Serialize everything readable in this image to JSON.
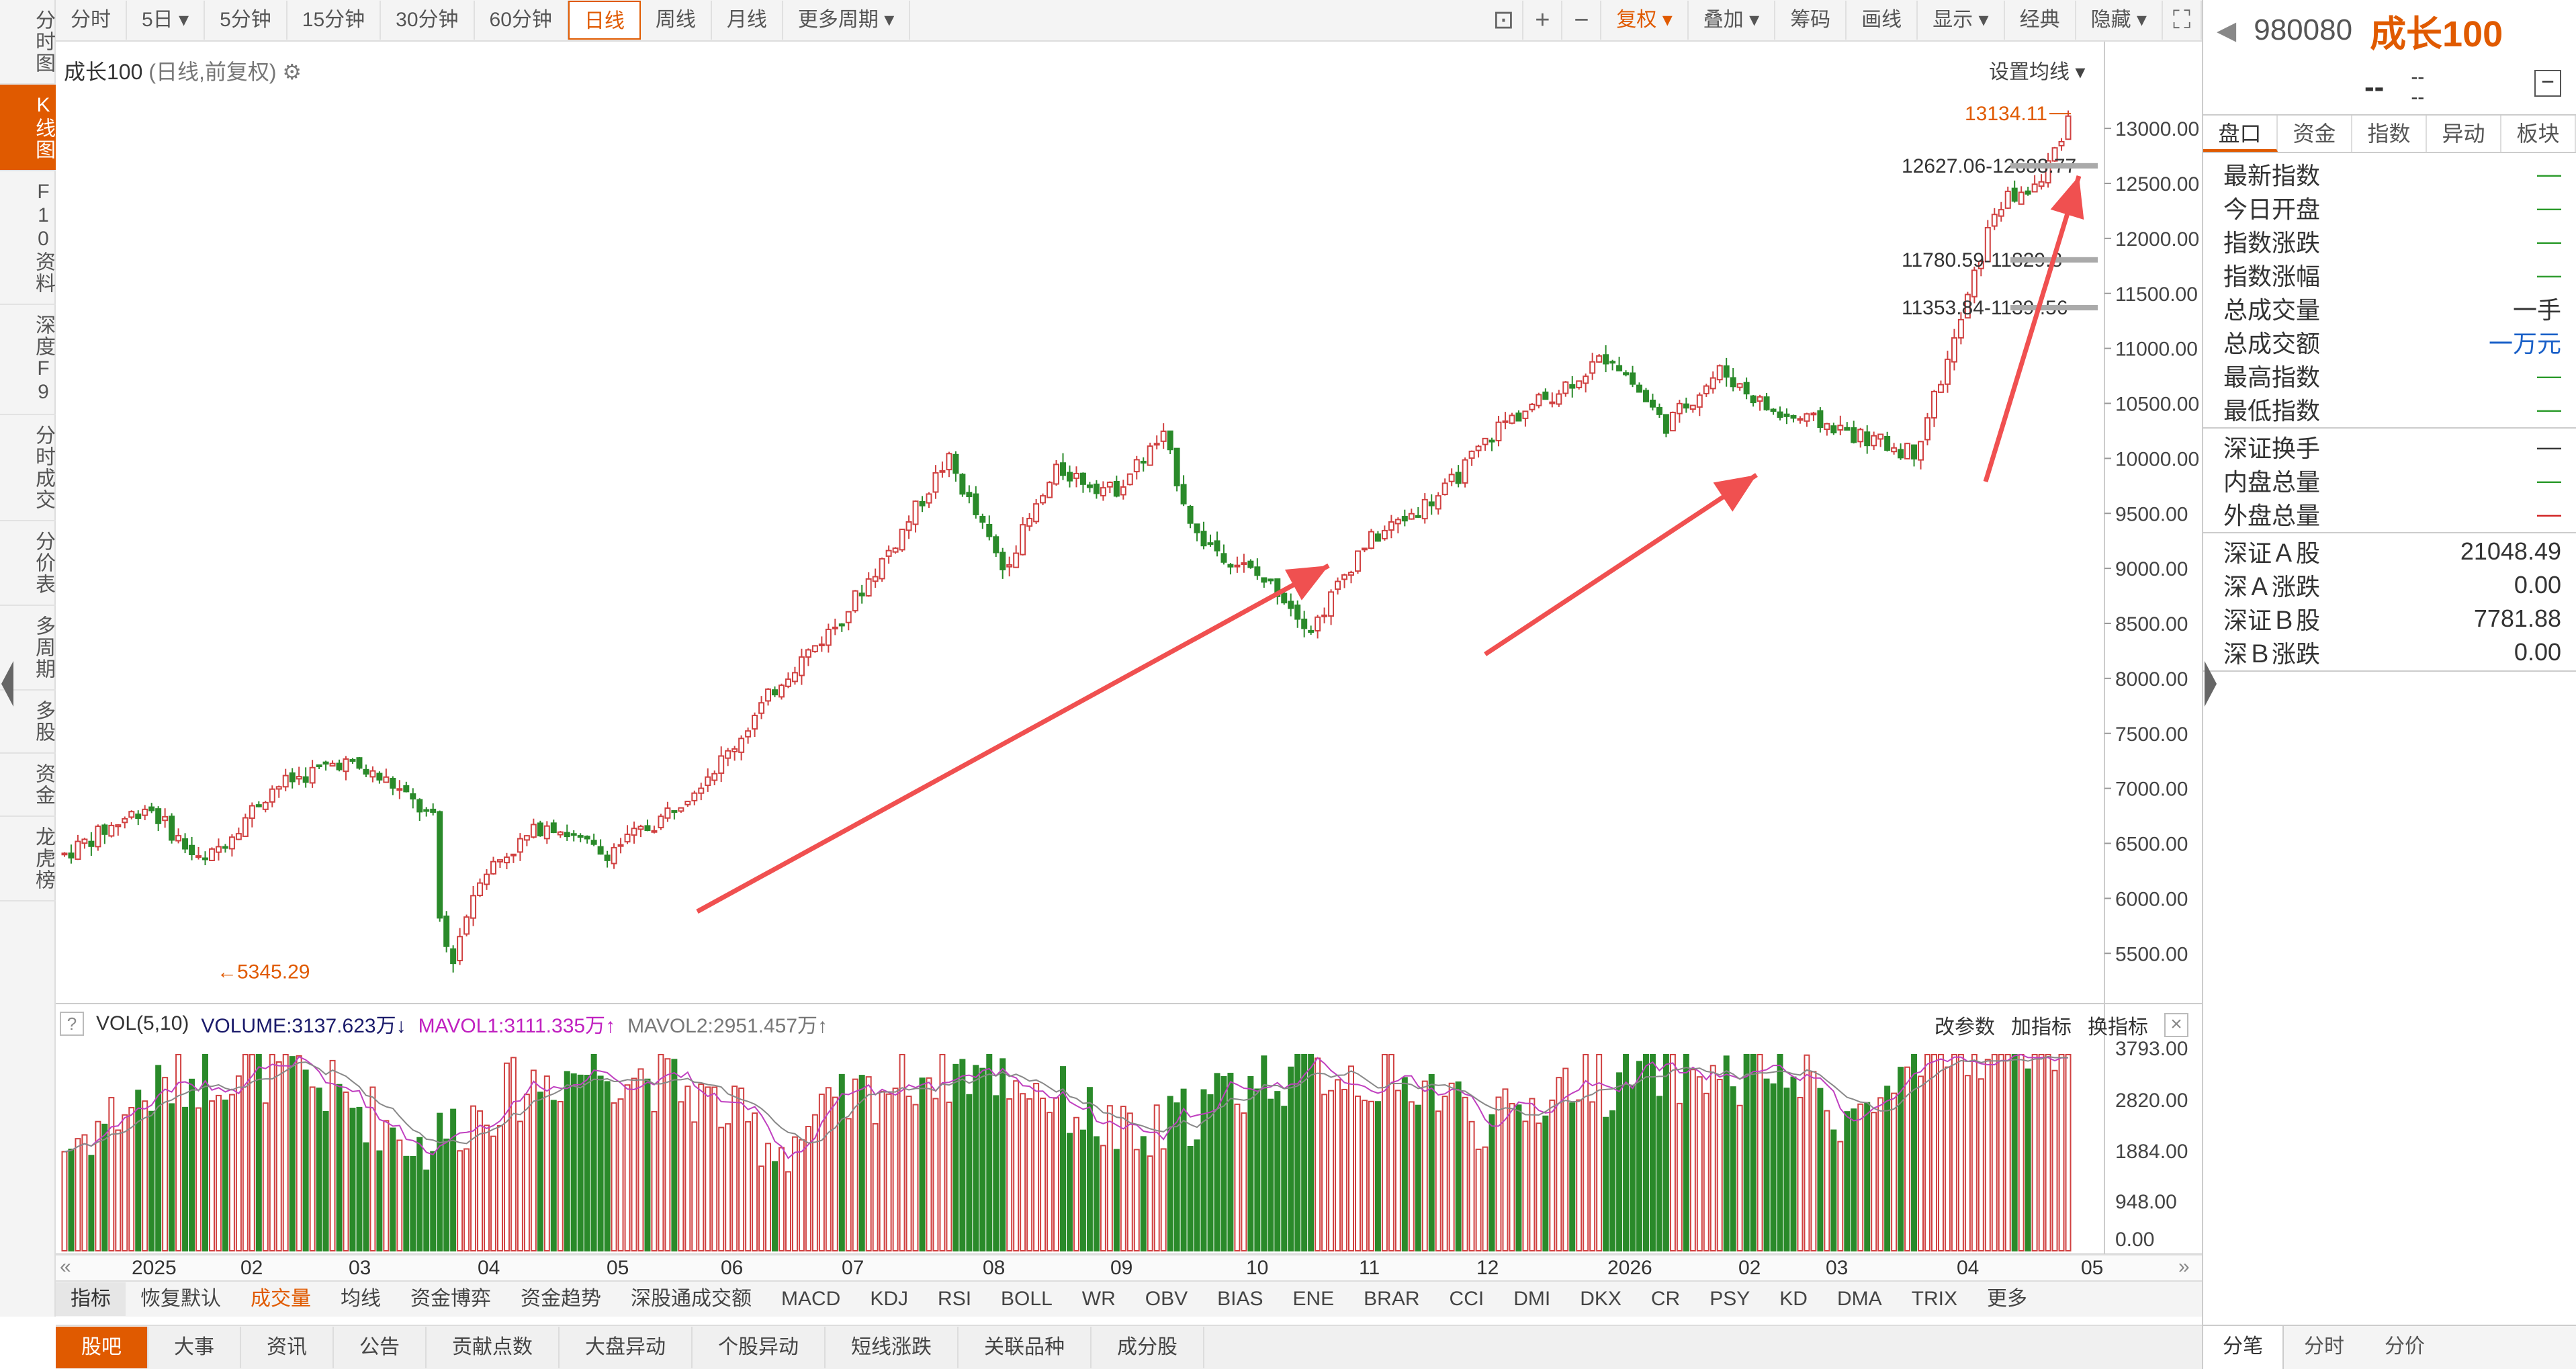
{
  "left_nav": [
    {
      "label": "分时图",
      "active": false
    },
    {
      "label": "K线图",
      "active": true
    },
    {
      "label": "F10资料",
      "active": false
    },
    {
      "label": "深度F9",
      "active": false
    },
    {
      "label": "分时成交",
      "active": false
    },
    {
      "label": "分价表",
      "active": false
    },
    {
      "label": "多周期",
      "active": false
    },
    {
      "label": "多股",
      "active": false
    },
    {
      "label": "资金",
      "active": false
    },
    {
      "label": "龙虎榜",
      "active": false
    }
  ],
  "toolbar": {
    "periods": [
      {
        "label": "分时",
        "active": false
      },
      {
        "label": "5日 ▾",
        "active": false
      },
      {
        "label": "5分钟",
        "active": false
      },
      {
        "label": "15分钟",
        "active": false
      },
      {
        "label": "30分钟",
        "active": false
      },
      {
        "label": "60分钟",
        "active": false
      },
      {
        "label": "日线",
        "active": true
      },
      {
        "label": "周线",
        "active": false
      },
      {
        "label": "月线",
        "active": false
      },
      {
        "label": "更多周期 ▾",
        "active": false
      }
    ],
    "tools": [
      "复权 ▾",
      "叠加 ▾",
      "筹码",
      "画线",
      "显示 ▾",
      "经典",
      "隐藏 ▾"
    ]
  },
  "chart": {
    "title_name": "成长100",
    "title_sub": "(日线,前复权)",
    "set_ma": "设置均线 ▾",
    "y_ticks": [
      "13000.00",
      "12500.00",
      "12000.00",
      "11500.00",
      "11000.00",
      "10500.00",
      "10000.00",
      "9500.00",
      "9000.00",
      "8500.00",
      "8000.00",
      "7500.00",
      "7000.00",
      "6500.00",
      "6000.00",
      "5500.00"
    ],
    "x_ticks": [
      "2025",
      "02",
      "03",
      "04",
      "05",
      "06",
      "07",
      "08",
      "09",
      "10",
      "11",
      "12",
      "2026",
      "02",
      "03",
      "04",
      "05"
    ],
    "max_label": "13134.11",
    "min_label": "5345.29",
    "gap_labels": [
      "12627.06-12688.77",
      "11780.59-11829.8",
      "11353.84-1139 .56"
    ]
  },
  "chart_data": {
    "type": "candlestick",
    "ylim": [
      5300,
      13300
    ],
    "high": 13134.11,
    "low": 5345.29,
    "trend_arrows": 3
  },
  "volume": {
    "legend_name": "VOL(5,10)",
    "volume_label": "VOLUME:3137.623万",
    "mavol1_label": "MAVOL1:3111.335万",
    "mavol2_label": "MAVOL2:2951.457万",
    "y_ticks": [
      "3793.00",
      "2820.00",
      "1884.00",
      "948.00",
      "0.00"
    ],
    "actions": [
      "改参数",
      "加指标",
      "换指标"
    ]
  },
  "indicator_tabs": [
    "指标",
    "恢复默认",
    "成交量",
    "均线",
    "资金博弈",
    "资金趋势",
    "深股通成交额",
    "MACD",
    "KDJ",
    "RSI",
    "BOLL",
    "WR",
    "OBV",
    "BIAS",
    "ENE",
    "BRAR",
    "CCI",
    "DMI",
    "DKX",
    "CR",
    "PSY",
    "KD",
    "DMA",
    "TRIX",
    "更多"
  ],
  "bottom_tabs": [
    "股吧",
    "大事",
    "资讯",
    "公告",
    "贡献点数",
    "大盘异动",
    "个股异动",
    "短线涨跌",
    "关联品种",
    "成分股"
  ],
  "right_panel": {
    "code": "980080",
    "name": "成长100",
    "price": "--",
    "change_a": "--",
    "change_b": "--",
    "tabs": [
      "盘口",
      "资金",
      "指数",
      "异动",
      "板块"
    ],
    "rows_a": [
      {
        "label": "最新指数",
        "value": "—",
        "color": "green"
      },
      {
        "label": "今日开盘",
        "value": "—",
        "color": "green"
      },
      {
        "label": "指数涨跌",
        "value": "—",
        "color": "green"
      },
      {
        "label": "指数涨幅",
        "value": "—",
        "color": "green"
      },
      {
        "label": "总成交量",
        "value": "一手",
        "color": "normal"
      },
      {
        "label": "总成交额",
        "value": "一万元",
        "color": "blue"
      },
      {
        "label": "最高指数",
        "value": "—",
        "color": "green"
      },
      {
        "label": "最低指数",
        "value": "—",
        "color": "green"
      }
    ],
    "rows_b": [
      {
        "label": "深证换手",
        "value": "—",
        "color": "normal"
      },
      {
        "label": "内盘总量",
        "value": "—",
        "color": "green"
      },
      {
        "label": "外盘总量",
        "value": "—",
        "color": "red"
      }
    ],
    "rows_c": [
      {
        "label": "深证Ａ股",
        "value": "21048.49",
        "color": "normal"
      },
      {
        "label": "深Ａ涨跌",
        "value": "0.00",
        "color": "normal"
      },
      {
        "label": "深证Ｂ股",
        "value": "7781.88",
        "color": "normal"
      },
      {
        "label": "深Ｂ涨跌",
        "value": "0.00",
        "color": "normal"
      }
    ],
    "bottom_tabs": [
      "分笔",
      "分时",
      "分价"
    ]
  }
}
